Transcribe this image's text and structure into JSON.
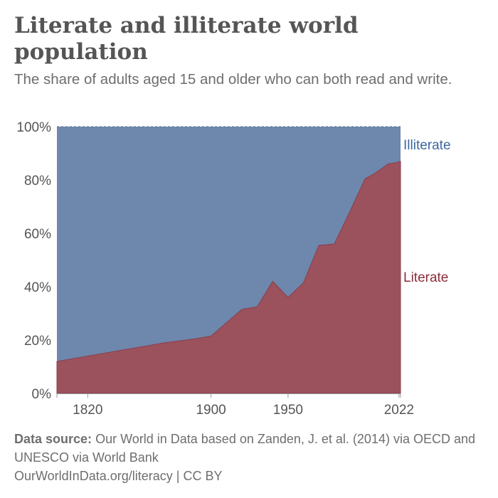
{
  "title": "Literate and illiterate world population",
  "subtitle": "The share of adults aged 15 and older who can both read and write.",
  "footer": {
    "source_label": "Data source:",
    "source_text": "Our World in Data based on Zanden, J. et al. (2014) via OECD and UNESCO via World Bank",
    "url": "OurWorldInData.org/literacy",
    "license": "| CC BY"
  },
  "colors": {
    "literate": "#9b525d",
    "illiterate": "#6e87ac",
    "literate_label": "#8c2d3c",
    "illiterate_label": "#3e66a0"
  },
  "chart_data": {
    "type": "area",
    "stacked": true,
    "x_ticks": [
      1820,
      1900,
      1950,
      2022
    ],
    "y_ticks": [
      "0%",
      "20%",
      "40%",
      "60%",
      "80%",
      "100%"
    ],
    "xlim": [
      1800,
      2023
    ],
    "ylim": [
      0,
      100
    ],
    "grid": "horizontal dashed",
    "legend": "inline-right",
    "x": [
      1800,
      1820,
      1850,
      1870,
      1890,
      1900,
      1910,
      1920,
      1930,
      1940,
      1950,
      1960,
      1970,
      1980,
      1990,
      2000,
      2005,
      2010,
      2015,
      2020,
      2023
    ],
    "series": [
      {
        "name": "Literate",
        "values": [
          12,
          14,
          17,
          19,
          20.5,
          21.5,
          26.5,
          31.5,
          32.5,
          42,
          36,
          41.5,
          55.5,
          56,
          68,
          80.5,
          82,
          84,
          86,
          86.5,
          87
        ]
      },
      {
        "name": "Illiterate",
        "values": [
          88,
          86,
          83,
          81,
          79.5,
          78.5,
          73.5,
          68.5,
          67.5,
          58,
          64,
          58.5,
          44.5,
          44,
          32,
          19.5,
          18,
          16,
          14,
          13.5,
          13
        ]
      }
    ]
  }
}
